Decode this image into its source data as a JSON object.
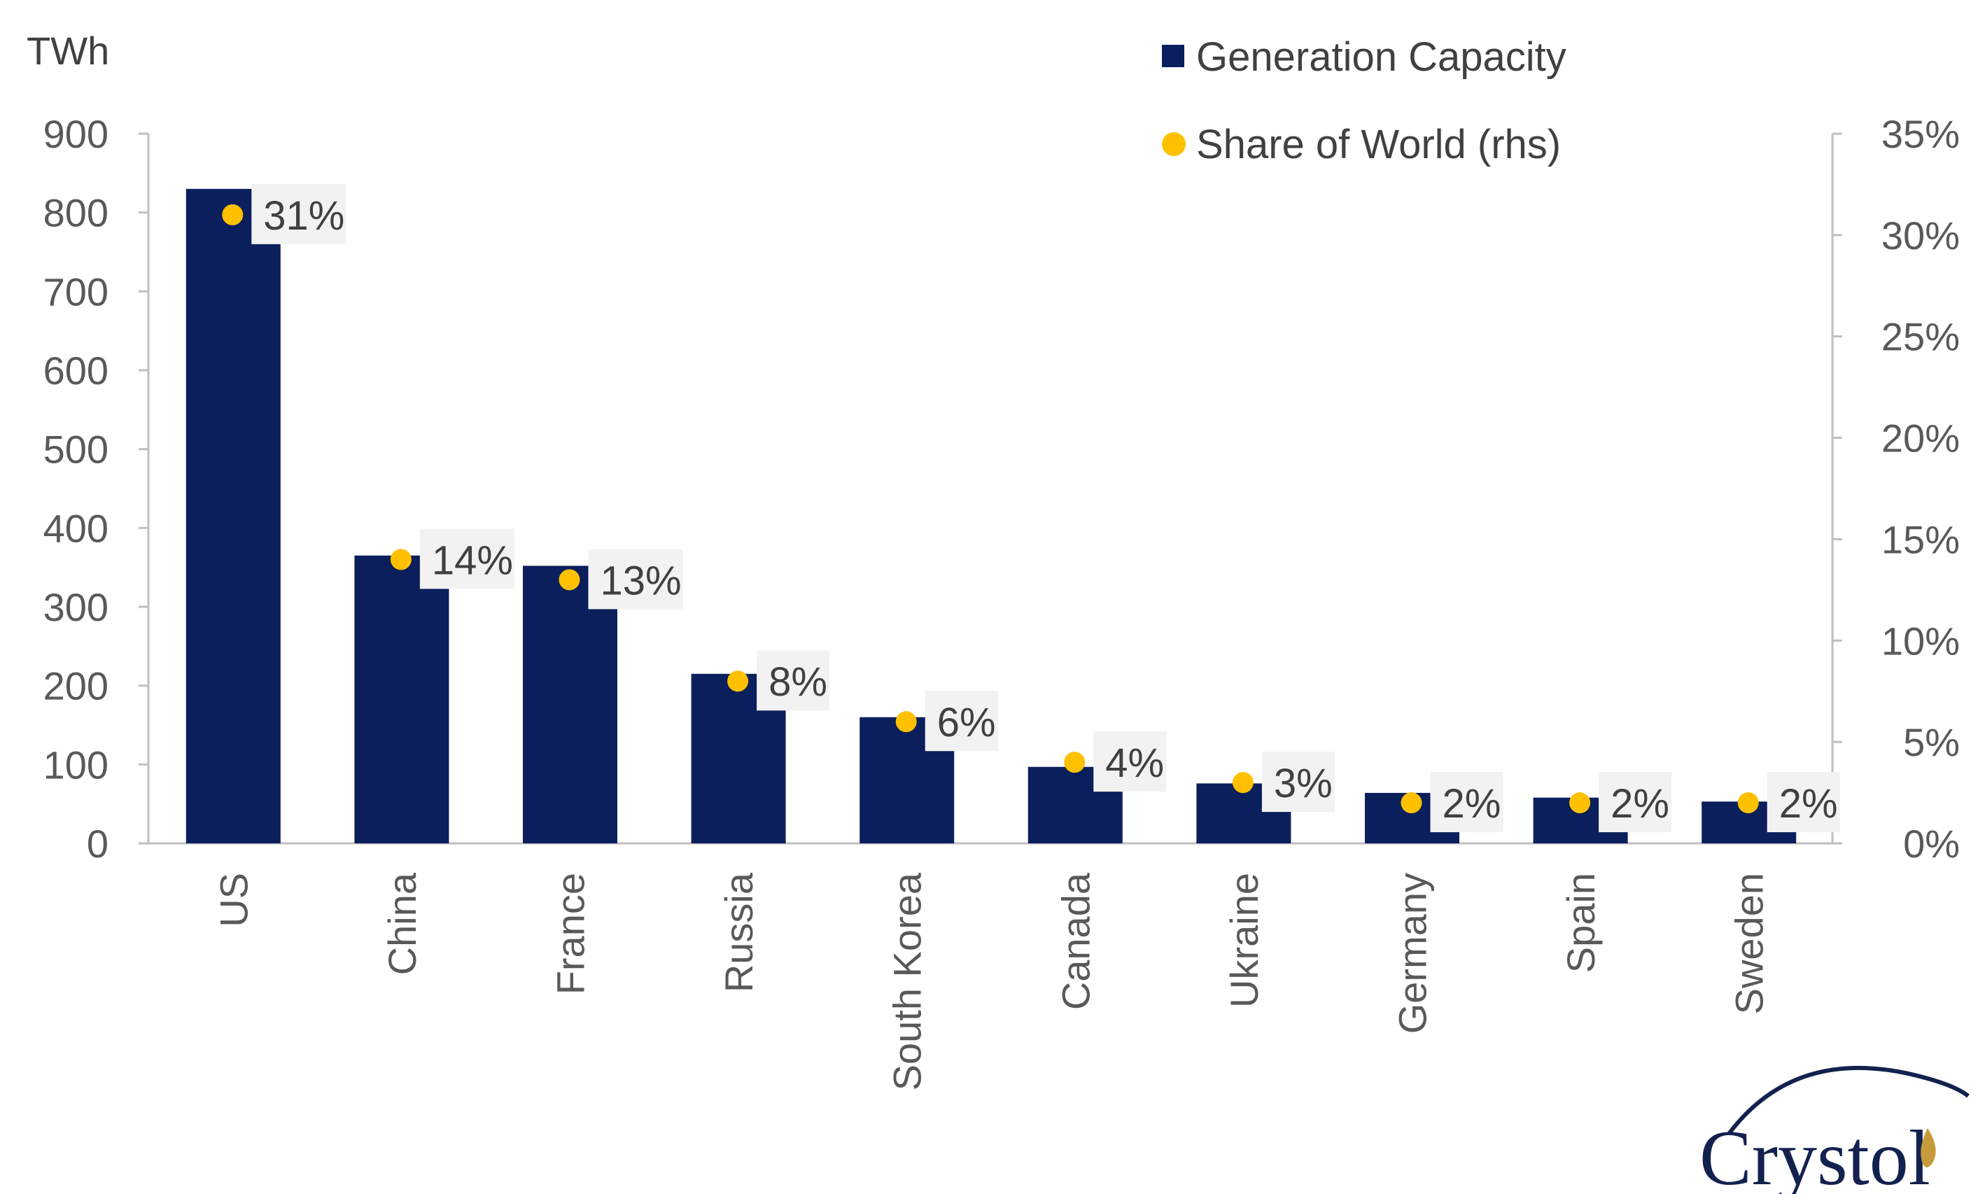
{
  "chart_data": {
    "type": "bar",
    "categories": [
      "US",
      "China",
      "France",
      "Russia",
      "South Korea",
      "Canada",
      "Ukraine",
      "Germany",
      "Spain",
      "Sweden"
    ],
    "series": [
      {
        "name": "Generation Capacity",
        "type": "bar",
        "axis": "left",
        "color": "#0b1f5c",
        "values": [
          830,
          365,
          352,
          215,
          160,
          97,
          76,
          64,
          58,
          53
        ]
      },
      {
        "name": "Share of World (rhs)",
        "type": "scatter",
        "axis": "right",
        "color": "#ffc000",
        "values": [
          0.31,
          0.14,
          0.13,
          0.08,
          0.06,
          0.04,
          0.03,
          0.02,
          0.02,
          0.02
        ],
        "labels": [
          "31%",
          "14%",
          "13%",
          "8%",
          "6%",
          "4%",
          "3%",
          "2%",
          "2%",
          "2%"
        ]
      }
    ],
    "ylabel": "TWh",
    "ylim": [
      0,
      900
    ],
    "yticks": [
      "0",
      "100",
      "200",
      "300",
      "400",
      "500",
      "600",
      "700",
      "800",
      "900"
    ],
    "y2lim": [
      0,
      0.35
    ],
    "y2ticks": [
      "0%",
      "5%",
      "10%",
      "15%",
      "20%",
      "25%",
      "30%",
      "35%"
    ],
    "grid": false,
    "legend_position": "top-right"
  },
  "logo": {
    "text": "Crystol",
    "name": "crystol-logo"
  }
}
